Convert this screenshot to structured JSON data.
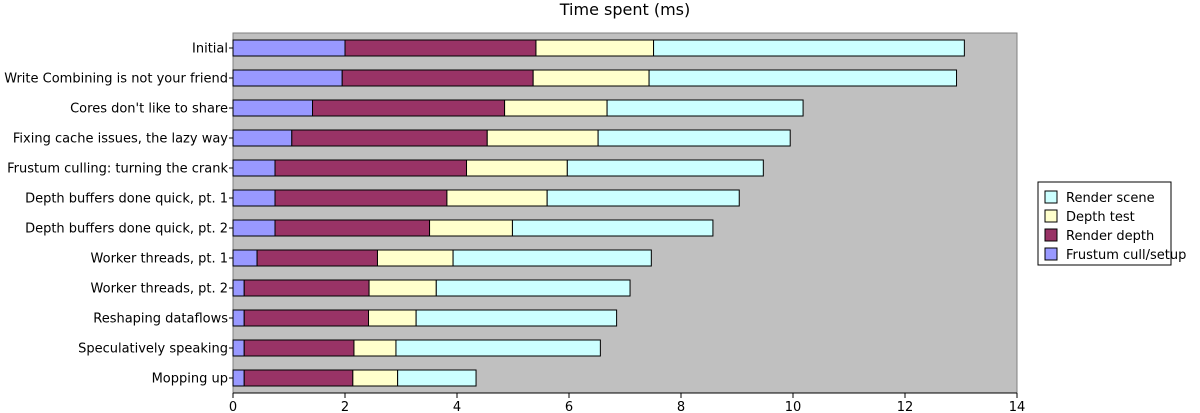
{
  "chart_data": {
    "type": "bar",
    "orientation": "horizontal",
    "stacked": true,
    "title": "Time spent (ms)",
    "xlim": [
      0,
      14
    ],
    "xticks": [
      0,
      2,
      4,
      6,
      8,
      10,
      12,
      14
    ],
    "categories": [
      "Initial",
      "Write Combining is not your friend",
      "Cores don't like to share",
      "Fixing cache issues, the lazy way",
      "Frustum culling: turning the crank",
      "Depth buffers done quick, pt. 1",
      "Depth buffers done quick, pt. 2",
      "Worker threads, pt. 1",
      "Worker threads, pt. 2",
      "Reshaping dataflows",
      "Speculatively speaking",
      "Mopping up"
    ],
    "series": [
      {
        "name": "Frustum cull/setup",
        "color": "#9999ff",
        "values": [
          2.0,
          1.95,
          1.42,
          1.05,
          0.75,
          0.75,
          0.75,
          0.43,
          0.2,
          0.2,
          0.2,
          0.2
        ]
      },
      {
        "name": "Render depth",
        "color": "#993366",
        "values": [
          3.41,
          3.41,
          3.43,
          3.49,
          3.42,
          3.07,
          2.76,
          2.15,
          2.23,
          2.22,
          1.96,
          1.94
        ]
      },
      {
        "name": "Depth test",
        "color": "#ffffcc",
        "values": [
          2.1,
          2.07,
          1.83,
          1.98,
          1.8,
          1.79,
          1.48,
          1.35,
          1.2,
          0.85,
          0.75,
          0.8
        ]
      },
      {
        "name": "Render scene",
        "color": "#ccffff",
        "values": [
          5.55,
          5.49,
          3.5,
          3.43,
          3.5,
          3.43,
          3.58,
          3.54,
          3.46,
          3.58,
          3.65,
          1.4
        ]
      }
    ],
    "legend_order": [
      "Render scene",
      "Depth test",
      "Render depth",
      "Frustum cull/setup"
    ],
    "legend_position": "right",
    "plot_background": "#c0c0c0",
    "grid": false
  }
}
